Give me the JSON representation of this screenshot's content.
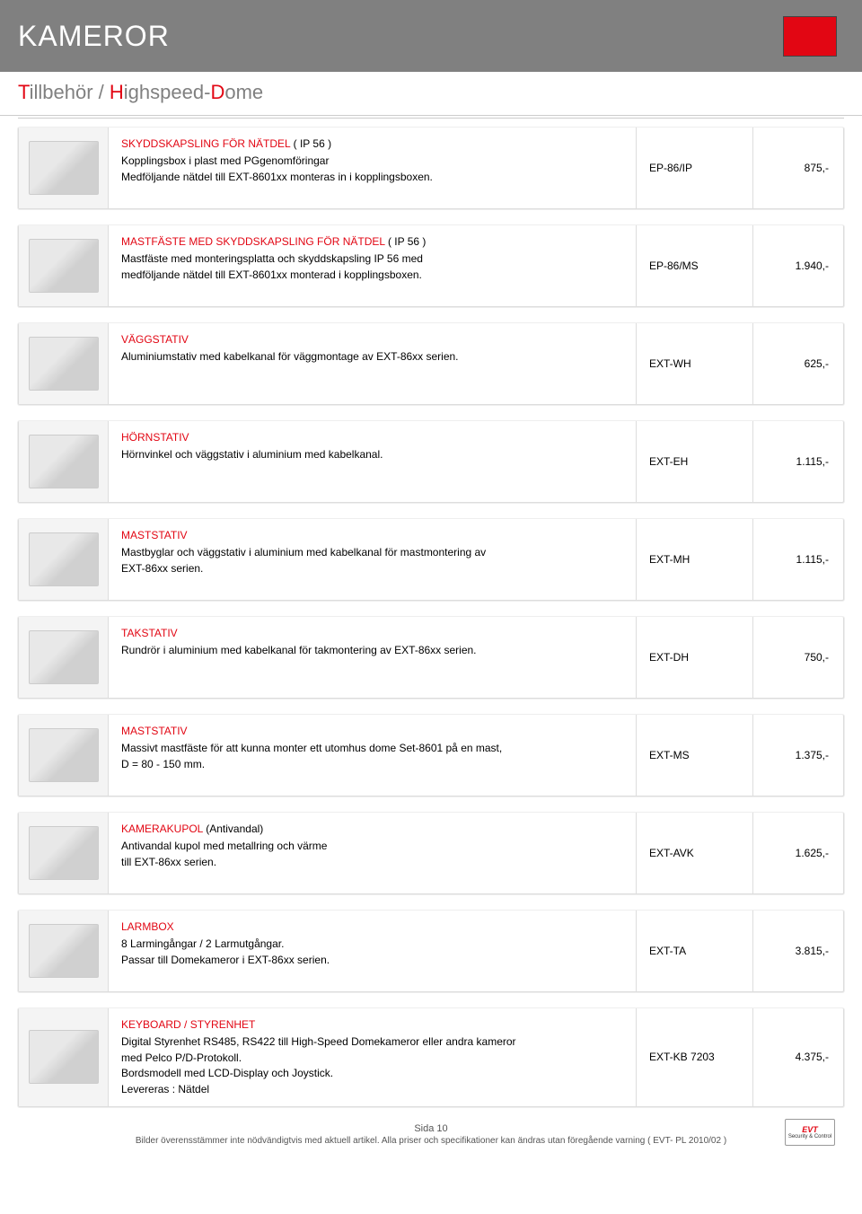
{
  "header": {
    "title": "KAMEROR",
    "subtitle_parts": [
      {
        "red": "T",
        "rest": "illbehör"
      },
      {
        "sep": " / "
      },
      {
        "red": "H",
        "rest": "ighspeed-"
      },
      {
        "red": "D",
        "rest": "ome"
      }
    ]
  },
  "products": [
    {
      "title": "SKYDDSKAPSLING FÖR NÄTDEL",
      "title_suffix": " ( IP 56 )",
      "desc": "Kopplingsbox i plast med PGgenomföringar\nMedföljande nätdel till EXT-8601xx monteras in i kopplingsboxen.",
      "sku": "EP-86/IP",
      "price": "875,-"
    },
    {
      "title": "MASTFÄSTE MED SKYDDSKAPSLING FÖR NÄTDEL",
      "title_suffix": " ( IP 56 )",
      "desc": "Mastfäste med monteringsplatta och skyddskapsling IP 56 med\nmedföljande nätdel till EXT-8601xx monterad i kopplingsboxen.",
      "sku": "EP-86/MS",
      "price": "1.940,-"
    },
    {
      "title": "VÄGGSTATIV",
      "title_suffix": "",
      "desc": "Aluminiumstativ med kabelkanal för väggmontage av EXT-86xx serien.",
      "sku": "EXT-WH",
      "price": "625,-"
    },
    {
      "title": "HÖRNSTATIV",
      "title_suffix": "",
      "desc": "Hörnvinkel och väggstativ i aluminium med kabelkanal.",
      "sku": "EXT-EH",
      "price": "1.115,-"
    },
    {
      "title": "MASTSTATIV",
      "title_suffix": "",
      "desc": "Mastbyglar och väggstativ i aluminium med kabelkanal för mastmontering av\nEXT-86xx serien.",
      "sku": "EXT-MH",
      "price": "1.115,-"
    },
    {
      "title": "TAKSTATIV",
      "title_suffix": "",
      "desc": "Rundrör i aluminium med kabelkanal för takmontering av EXT-86xx serien.",
      "sku": "EXT-DH",
      "price": "750,-"
    },
    {
      "title": "MASTSTATIV",
      "title_suffix": "",
      "desc": "Massivt mastfäste för att kunna monter ett utomhus dome Set-8601 på en mast,\nD = 80 - 150 mm.",
      "sku": "EXT-MS",
      "price": "1.375,-"
    },
    {
      "title": "KAMERAKUPOL",
      "title_suffix": " (Antivandal)",
      "desc": "Antivandal kupol med metallring och värme\ntill EXT-86xx serien.",
      "sku": "EXT-AVK",
      "price": "1.625,-"
    },
    {
      "title": "LARMBOX",
      "title_suffix": "",
      "desc": "8 Larmingångar / 2 Larmutgångar.\nPassar till Domekameror i EXT-86xx serien.",
      "sku": "EXT-TA",
      "price": "3.815,-"
    },
    {
      "title": "KEYBOARD / STYRENHET",
      "title_suffix": "",
      "desc": "Digital Styrenhet RS485, RS422 till High-Speed Domekameror eller andra kameror\nmed Pelco P/D-Protokoll.\nBordsmodell med LCD-Display och Joystick.\nLevereras : Nätdel",
      "sku": "EXT-KB 7203",
      "price": "4.375,-"
    }
  ],
  "footer": {
    "page_label": "Sida 10",
    "disclaimer": "Bilder överensstämmer inte nödvändigtvis med aktuell artikel. Alla priser och specifikationer kan ändras utan föregående varning  ( EVT- PL 2010/02 )",
    "logo_main": "EVT",
    "logo_sub": "Security & Control"
  },
  "colors": {
    "accent_red": "#e20613",
    "header_gray": "#808080",
    "text_gray": "#808080",
    "border": "#dddddd"
  }
}
